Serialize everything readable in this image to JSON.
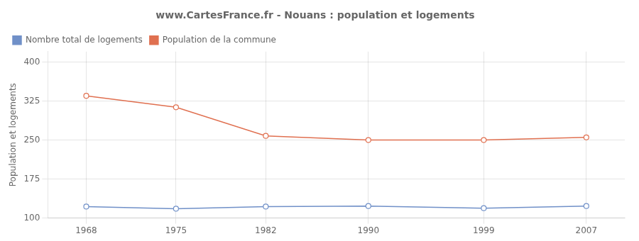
{
  "chart_data": {
    "type": "line",
    "title": "www.CartesFrance.fr - Nouans : population et logements",
    "ylabel": "Population et logements",
    "x": [
      1968,
      1975,
      1982,
      1990,
      1999,
      2007
    ],
    "series": [
      {
        "name": "Nombre total de logements",
        "color": "#7090c8",
        "values": [
          122,
          118,
          122,
          123,
          119,
          123
        ],
        "marker": "circle",
        "line_style": "solid"
      },
      {
        "name": "Population de la commune",
        "color": "#e07050",
        "values": [
          335,
          313,
          258,
          250,
          250,
          255
        ],
        "marker": "circle",
        "line_style": "solid"
      }
    ],
    "xlim": [
      1965,
      2010
    ],
    "xticks": [
      1968,
      1975,
      1982,
      1990,
      1999,
      2007
    ],
    "ylim": [
      100,
      420
    ],
    "yticks": [
      100,
      175,
      250,
      325,
      400
    ],
    "grid": true,
    "legend": "upper left"
  }
}
